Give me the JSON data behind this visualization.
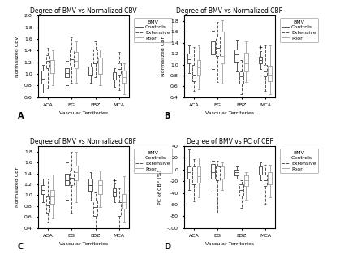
{
  "title_A": "Degree of BMV vs Normalized CBV",
  "title_B": "Degree of BMV vs Normalized CBF",
  "title_C": "Degree of BMV vs Normalized CBF",
  "title_D": "Degree of BMV vs PC of CBF",
  "xlabel": "Vascular Territories",
  "ylabel_A": "Normalized CBV",
  "ylabel_B": "Normalized CBF",
  "ylabel_C": "Normalized CBF",
  "ylabel_D": "PC of CBF (%)",
  "territories": [
    "ACA",
    "BG",
    "EBZ",
    "MCA"
  ],
  "legend_title": "BMV",
  "legend_labels": [
    "Controls",
    "Extensive",
    "Poor"
  ],
  "label_A": "A",
  "label_B": "B",
  "label_C": "C",
  "label_D": "D",
  "plotA": {
    "Controls": {
      "ACA": {
        "med": 0.92,
        "q1": 0.83,
        "q3": 1.05,
        "whislo": 0.68,
        "whishi": 1.15
      },
      "BG": {
        "med": 1.02,
        "q1": 0.95,
        "q3": 1.1,
        "whislo": 0.8,
        "whishi": 1.22
      },
      "EBZ": {
        "med": 1.05,
        "q1": 0.98,
        "q3": 1.12,
        "whislo": 0.85,
        "whishi": 1.2
      },
      "MCA": {
        "med": 0.97,
        "q1": 0.9,
        "q3": 1.03,
        "whislo": 0.78,
        "whishi": 1.1
      }
    },
    "Extensive": {
      "ACA": {
        "med": 1.22,
        "q1": 1.1,
        "q3": 1.32,
        "whislo": 0.75,
        "whishi": 1.45
      },
      "BG": {
        "med": 1.25,
        "q1": 1.12,
        "q3": 1.42,
        "whislo": 0.85,
        "whishi": 1.62
      },
      "EBZ": {
        "med": 1.28,
        "q1": 1.18,
        "q3": 1.42,
        "whislo": 0.95,
        "whishi": 1.55
      },
      "MCA": {
        "med": 1.08,
        "q1": 0.98,
        "q3": 1.18,
        "whislo": 0.72,
        "whishi": 1.38
      }
    },
    "Poor": {
      "ACA": {
        "med": 1.12,
        "q1": 1.02,
        "q3": 1.24,
        "whislo": 0.8,
        "whishi": 1.4
      },
      "BG": {
        "med": 1.22,
        "q1": 1.1,
        "q3": 1.38,
        "whislo": 0.85,
        "whishi": 1.55
      },
      "EBZ": {
        "med": 1.12,
        "q1": 1.0,
        "q3": 1.28,
        "whislo": 0.8,
        "whishi": 1.42
      },
      "MCA": {
        "med": 0.95,
        "q1": 0.85,
        "q3": 1.05,
        "whislo": 0.65,
        "whishi": 1.18
      }
    }
  },
  "plotB": {
    "Controls": {
      "ACA": {
        "med": 1.1,
        "q1": 1.02,
        "q3": 1.2,
        "whislo": 0.85,
        "whishi": 1.35
      },
      "BG": {
        "med": 1.28,
        "q1": 1.18,
        "q3": 1.42,
        "whislo": 0.92,
        "whishi": 1.62
      },
      "EBZ": {
        "med": 1.18,
        "q1": 1.05,
        "q3": 1.28,
        "whislo": 0.88,
        "whishi": 1.45
      },
      "MCA": {
        "med": 1.08,
        "q1": 1.02,
        "q3": 1.14,
        "whislo": 0.92,
        "whishi": 1.25,
        "flier_high": 1.32
      }
    },
    "Extensive": {
      "ACA": {
        "med": 0.82,
        "q1": 0.7,
        "q3": 1.0,
        "whislo": 0.52,
        "whishi": 1.32
      },
      "BG": {
        "med": 1.3,
        "q1": 1.15,
        "q3": 1.52,
        "whislo": 0.68,
        "whishi": 1.78
      },
      "EBZ": {
        "med": 0.78,
        "q1": 0.65,
        "q3": 0.88,
        "whislo": 0.45,
        "whishi": 1.08
      },
      "MCA": {
        "med": 0.88,
        "q1": 0.78,
        "q3": 1.0,
        "whislo": 0.52,
        "whishi": 1.35
      }
    },
    "Poor": {
      "ACA": {
        "med": 0.95,
        "q1": 0.82,
        "q3": 1.08,
        "whislo": 0.55,
        "whishi": 1.35
      },
      "BG": {
        "med": 1.15,
        "q1": 1.02,
        "q3": 1.6,
        "whislo": 0.65,
        "whishi": 1.82
      },
      "EBZ": {
        "med": 1.02,
        "q1": 0.88,
        "q3": 1.22,
        "whislo": 0.68,
        "whishi": 1.42
      },
      "MCA": {
        "med": 0.82,
        "q1": 0.7,
        "q3": 0.98,
        "whislo": 0.45,
        "whishi": 1.35
      }
    }
  },
  "plotC": {
    "Controls": {
      "ACA": {
        "med": 1.1,
        "q1": 1.02,
        "q3": 1.18,
        "whislo": 0.88,
        "whishi": 1.3
      },
      "BG": {
        "med": 1.28,
        "q1": 1.18,
        "q3": 1.4,
        "whislo": 0.92,
        "whishi": 1.6
      },
      "EBZ": {
        "med": 1.18,
        "q1": 1.08,
        "q3": 1.3,
        "whislo": 0.9,
        "whishi": 1.42
      },
      "MCA": {
        "med": 1.05,
        "q1": 0.98,
        "q3": 1.12,
        "whislo": 0.88,
        "whishi": 1.22,
        "flier_high": 1.28
      }
    },
    "Extensive": {
      "ACA": {
        "med": 0.82,
        "q1": 0.68,
        "q3": 0.98,
        "whislo": 0.5,
        "whishi": 1.3
      },
      "BG": {
        "med": 1.32,
        "q1": 1.18,
        "q3": 1.45,
        "whislo": 0.68,
        "whishi": 1.8
      },
      "EBZ": {
        "med": 0.78,
        "q1": 0.62,
        "q3": 0.9,
        "whislo": 0.4,
        "whishi": 1.05
      },
      "MCA": {
        "med": 0.75,
        "q1": 0.62,
        "q3": 0.88,
        "whislo": 0.4,
        "whishi": 1.12
      }
    },
    "Poor": {
      "ACA": {
        "med": 0.98,
        "q1": 0.85,
        "q3": 1.1,
        "whislo": 0.58,
        "whishi": 1.38
      },
      "BG": {
        "med": 1.42,
        "q1": 1.28,
        "q3": 1.55,
        "whislo": 0.88,
        "whishi": 1.8
      },
      "EBZ": {
        "med": 1.18,
        "q1": 1.02,
        "q3": 1.28,
        "whislo": 0.78,
        "whishi": 1.45
      },
      "MCA": {
        "med": 0.88,
        "q1": 0.75,
        "q3": 1.02,
        "whislo": 0.5,
        "whishi": 1.35
      }
    }
  },
  "plotD": {
    "Controls": {
      "ACA": {
        "med": -5,
        "q1": -15,
        "q3": 5,
        "whislo": -35,
        "whishi": 35
      },
      "BG": {
        "med": -5,
        "q1": -15,
        "q3": 10,
        "whislo": -38,
        "whishi": 15
      },
      "EBZ": {
        "med": -5,
        "q1": -10,
        "q3": 0,
        "whislo": -15,
        "whishi": 5
      },
      "MCA": {
        "med": -2,
        "q1": -8,
        "q3": 5,
        "whislo": -18,
        "whishi": 12
      }
    },
    "Extensive": {
      "ACA": {
        "med": -15,
        "q1": -25,
        "q3": 5,
        "whislo": -55,
        "whishi": 18
      },
      "BG": {
        "med": -8,
        "q1": -18,
        "q3": 5,
        "whislo": -75,
        "whishi": 15
      },
      "EBZ": {
        "med": -35,
        "q1": -45,
        "q3": -25,
        "whislo": -65,
        "whishi": -18
      },
      "MCA": {
        "med": -18,
        "q1": -28,
        "q3": -8,
        "whislo": -58,
        "whishi": 8
      }
    },
    "Poor": {
      "ACA": {
        "med": -12,
        "q1": -22,
        "q3": 5,
        "whislo": -48,
        "whishi": 20
      },
      "BG": {
        "med": -8,
        "q1": -15,
        "q3": 5,
        "whislo": -35,
        "whishi": 12
      },
      "EBZ": {
        "med": -18,
        "q1": -28,
        "q3": -10,
        "whislo": -52,
        "whishi": -5
      },
      "MCA": {
        "med": -15,
        "q1": -25,
        "q3": -5,
        "whislo": -48,
        "whishi": 8
      }
    }
  },
  "styles": {
    "Controls": {
      "linestyle": "-",
      "color": "#555555",
      "linewidth": 0.7
    },
    "Extensive": {
      "linestyle": "--",
      "color": "#555555",
      "linewidth": 0.7
    },
    "Poor": {
      "linestyle": "-",
      "color": "#aaaaaa",
      "linewidth": 0.7
    }
  },
  "box_width": 0.16,
  "offsets": [
    -0.2,
    0.0,
    0.2
  ],
  "flierprops": {
    "marker": "+",
    "markersize": 2.5,
    "markeredgewidth": 0.5
  },
  "title_fontsize": 5.5,
  "label_fontsize": 4.5,
  "tick_fontsize": 4.5,
  "legend_fontsize": 4.5
}
